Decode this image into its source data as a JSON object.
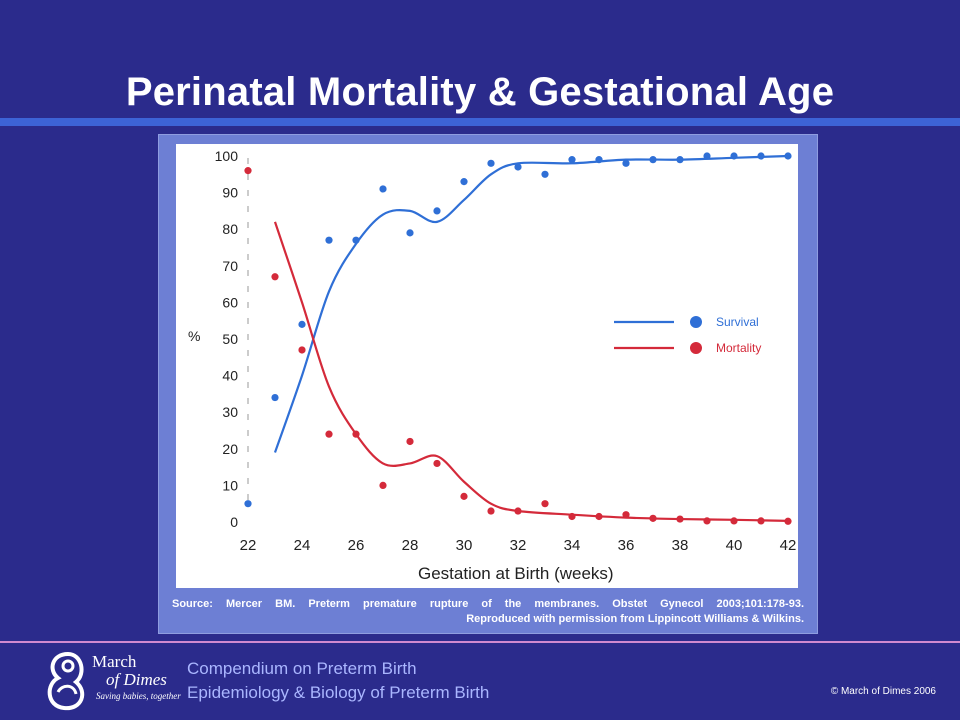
{
  "slide": {
    "title": "Perinatal Mortality & Gestational Age",
    "source_line1": "Source: Mercer BM. Preterm premature rupture of the membranes. Obstet Gynecol 2003;101:178-93.",
    "source_line2": "Reproduced with permission from Lippincott Williams & Wilkins."
  },
  "footer": {
    "logo_line1": "March",
    "logo_line2": "of Dimes",
    "logo_tagline": "Saving babies, together",
    "compendium": "Compendium on Preterm Birth",
    "subtitle": "Epidemiology & Biology of Preterm Birth",
    "copyright": "© March of Dimes 2006"
  },
  "colors": {
    "background": "#2b2b8c",
    "survival": "#2f6fd6",
    "mortality": "#d42a3a"
  },
  "chart_data": {
    "type": "line",
    "title": "",
    "xlabel": "Gestation at Birth (weeks)",
    "ylabel": "%",
    "xlim": [
      22,
      42
    ],
    "ylim": [
      0,
      100
    ],
    "xticks": [
      22,
      24,
      26,
      28,
      30,
      32,
      34,
      36,
      38,
      40,
      42
    ],
    "yticks": [
      0,
      10,
      20,
      30,
      40,
      50,
      60,
      70,
      80,
      90,
      100
    ],
    "grid": false,
    "legend_position": "right",
    "series": [
      {
        "name": "Survival",
        "color": "#2f6fd6",
        "points": [
          [
            22,
            5
          ],
          [
            23,
            34
          ],
          [
            24,
            54
          ],
          [
            25,
            77
          ],
          [
            26,
            77
          ],
          [
            27,
            91
          ],
          [
            28,
            79
          ],
          [
            29,
            85
          ],
          [
            30,
            93
          ],
          [
            31,
            98
          ],
          [
            32,
            97
          ],
          [
            33,
            95
          ],
          [
            34,
            99
          ],
          [
            35,
            99
          ],
          [
            36,
            98
          ],
          [
            37,
            99
          ],
          [
            38,
            99
          ],
          [
            39,
            100
          ],
          [
            40,
            100
          ],
          [
            41,
            100
          ],
          [
            42,
            100
          ]
        ],
        "curve": [
          [
            23,
            19
          ],
          [
            24,
            40
          ],
          [
            25,
            63
          ],
          [
            26,
            76
          ],
          [
            27,
            84
          ],
          [
            28,
            85
          ],
          [
            29,
            82
          ],
          [
            30,
            88
          ],
          [
            31,
            95
          ],
          [
            32,
            98
          ],
          [
            34,
            98
          ],
          [
            36,
            99
          ],
          [
            38,
            99
          ],
          [
            40,
            99.5
          ],
          [
            42,
            100
          ]
        ]
      },
      {
        "name": "Mortality",
        "color": "#d42a3a",
        "points": [
          [
            22,
            96
          ],
          [
            23,
            67
          ],
          [
            24,
            47
          ],
          [
            25,
            24
          ],
          [
            26,
            24
          ],
          [
            27,
            10
          ],
          [
            28,
            22
          ],
          [
            29,
            16
          ],
          [
            30,
            7
          ],
          [
            31,
            3
          ],
          [
            32,
            3
          ],
          [
            33,
            5
          ],
          [
            34,
            1.5
          ],
          [
            35,
            1.5
          ],
          [
            36,
            2
          ],
          [
            37,
            1
          ],
          [
            38,
            0.8
          ],
          [
            39,
            0.3
          ],
          [
            40,
            0.3
          ],
          [
            41,
            0.3
          ],
          [
            42,
            0.2
          ]
        ],
        "curve": [
          [
            23,
            82
          ],
          [
            24,
            60
          ],
          [
            25,
            37
          ],
          [
            26,
            24
          ],
          [
            27,
            16
          ],
          [
            28,
            16
          ],
          [
            29,
            18
          ],
          [
            30,
            11
          ],
          [
            31,
            5
          ],
          [
            32,
            3
          ],
          [
            34,
            2
          ],
          [
            36,
            1.2
          ],
          [
            38,
            0.8
          ],
          [
            40,
            0.6
          ],
          [
            42,
            0.3
          ]
        ]
      }
    ]
  }
}
